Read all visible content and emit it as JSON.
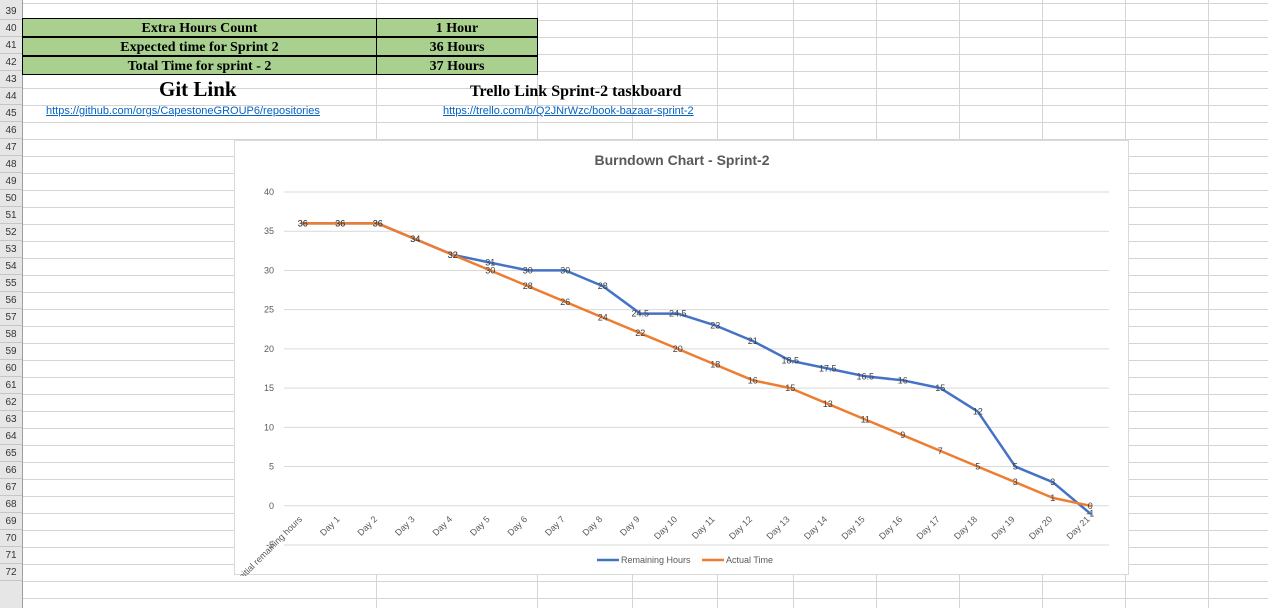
{
  "rows": [
    "39",
    "40",
    "41",
    "42",
    "43",
    "44",
    "45",
    "46",
    "47",
    "48",
    "49",
    "50",
    "51",
    "52",
    "53",
    "54",
    "55",
    "56",
    "57",
    "58",
    "59",
    "60",
    "61",
    "62",
    "63",
    "64",
    "65",
    "66",
    "67",
    "68",
    "69",
    "70",
    "71",
    "72"
  ],
  "summary": [
    {
      "label": "Extra Hours Count",
      "value": "1 Hour"
    },
    {
      "label": "Expected time for Sprint 2",
      "value": "36 Hours"
    },
    {
      "label": "Total Time for sprint - 2",
      "value": "37 Hours"
    }
  ],
  "git": {
    "title": "Git Link",
    "url": "https://github.com/orgs/CapestoneGROUP6/repositories"
  },
  "trello": {
    "title": "Trello Link Sprint-2 taskboard",
    "url": "https://trello.com/b/Q2JNrWzc/book-bazaar-sprint-2"
  },
  "chart_data": {
    "type": "line",
    "title": "Burndown Chart - Sprint-2",
    "xlabel": "",
    "ylabel": "",
    "ylim": [
      -5,
      40
    ],
    "yticks": [
      -5,
      0,
      5,
      10,
      15,
      20,
      25,
      30,
      35,
      40
    ],
    "grid": true,
    "legend_position": "bottom",
    "categories": [
      "Initial remaining hours",
      "Day 1",
      "Day 2",
      "Day 3",
      "Day 4",
      "Day 5",
      "Day 6",
      "Day 7",
      "Day 8",
      "Day 9",
      "Day 10",
      "Day 11",
      "Day 12",
      "Day 13",
      "Day 14",
      "Day 15",
      "Day 16",
      "Day 17",
      "Day 18",
      "Day 19",
      "Day 20",
      "Day 21"
    ],
    "series": [
      {
        "name": "Remaining Hours",
        "color": "#4472c4",
        "values": [
          36,
          36,
          36,
          34,
          32,
          31,
          30,
          30,
          28,
          24.5,
          24.5,
          23,
          21,
          18.5,
          17.5,
          16.5,
          16,
          15,
          12,
          5,
          3,
          -1
        ]
      },
      {
        "name": "Actual Time",
        "color": "#ed7d31",
        "values": [
          36,
          36,
          36,
          34,
          32,
          30,
          28,
          26,
          24,
          22,
          20,
          18,
          16,
          15,
          13,
          11,
          9,
          7,
          5,
          3,
          1,
          0
        ]
      }
    ]
  }
}
